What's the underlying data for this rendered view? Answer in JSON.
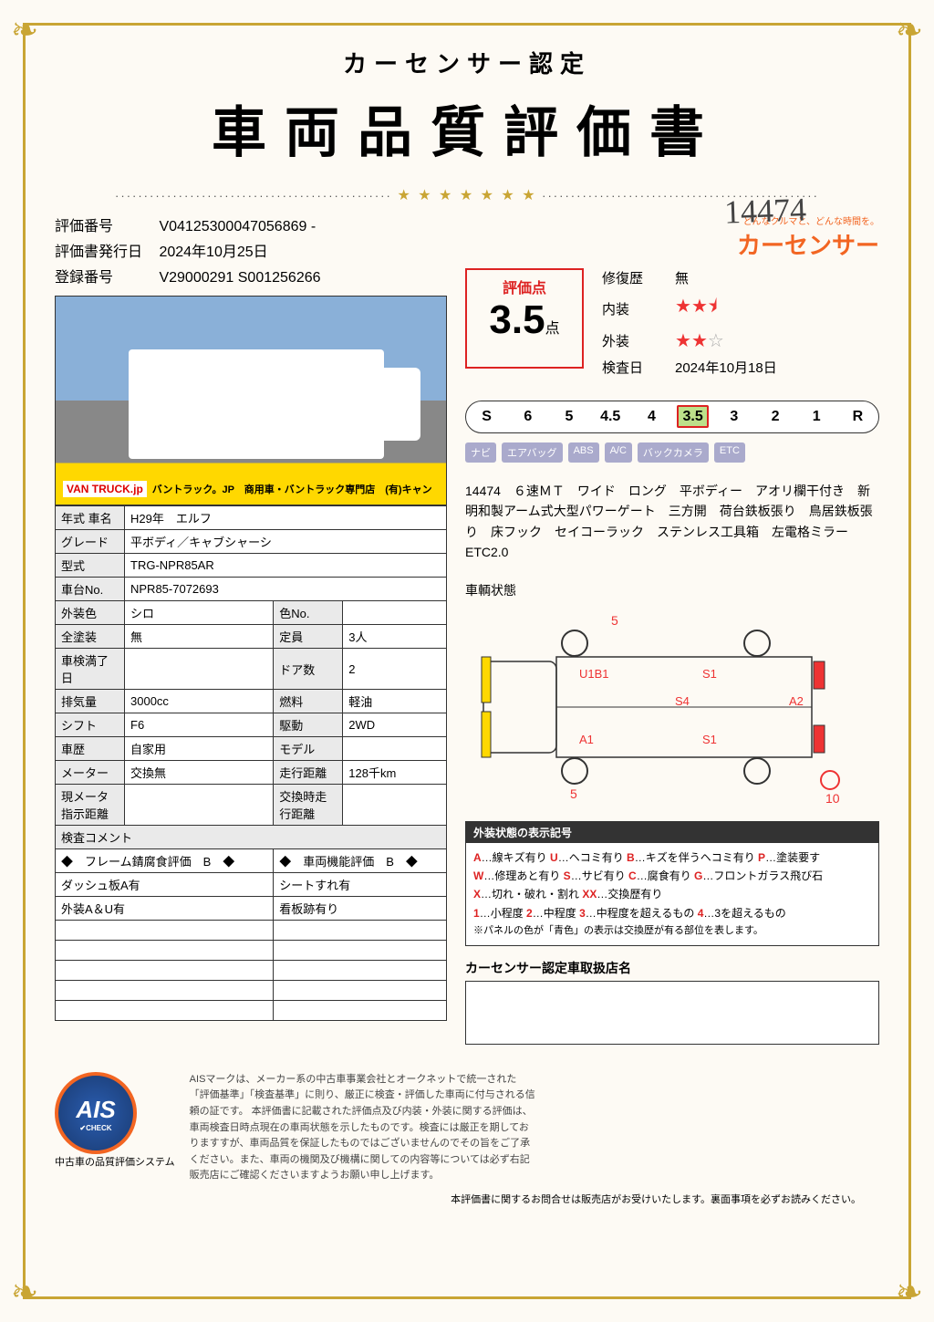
{
  "header": {
    "subtitle": "カーセンサー認定",
    "title": "車両品質評価書",
    "handwritten": "14474"
  },
  "meta": {
    "eval_no_label": "評価番号",
    "eval_no": "V04125300047056869  -",
    "issue_label": "評価書発行日",
    "issue_date": "2024年10月25日",
    "reg_label": "登録番号",
    "reg_no": "V29000291 S001256266"
  },
  "photo_banner": {
    "logo": "VAN TRUCK.jp",
    "text": "バントラック。JP　商用車・バントラック専門店　(有)キャン"
  },
  "spec": {
    "rows": [
      {
        "l1": "年式 車名",
        "v1": "H29年　エルフ",
        "l2": "",
        "v2": ""
      },
      {
        "l1": "グレード",
        "v1": "平ボディ／キャブシャーシ",
        "l2": "",
        "v2": ""
      },
      {
        "l1": "型式",
        "v1": "TRG-NPR85AR",
        "l2": "",
        "v2": ""
      },
      {
        "l1": "車台No.",
        "v1": "NPR85-7072693",
        "l2": "",
        "v2": ""
      },
      {
        "l1": "外装色",
        "v1": "シロ",
        "l2": "色No.",
        "v2": ""
      },
      {
        "l1": "全塗装",
        "v1": "無",
        "l2": "定員",
        "v2": "3人"
      },
      {
        "l1": "車検満了日",
        "v1": "",
        "l2": "ドア数",
        "v2": "2"
      },
      {
        "l1": "排気量",
        "v1": "3000cc",
        "l2": "燃料",
        "v2": "軽油"
      },
      {
        "l1": "シフト",
        "v1": "F6",
        "l2": "駆動",
        "v2": "2WD"
      },
      {
        "l1": "車歴",
        "v1": "自家用",
        "l2": "モデル",
        "v2": ""
      },
      {
        "l1": "メーター",
        "v1": "交換無",
        "l2": "走行距離",
        "v2": "128千km"
      },
      {
        "l1": "現メータ指示距離",
        "v1": "",
        "l2": "交換時走行距離",
        "v2": ""
      }
    ],
    "comment_label": "検査コメント",
    "comment_rows": [
      {
        "c1": "◆　フレーム錆腐食評価　B　◆",
        "c2": "◆　車両機能評価　B　◆"
      },
      {
        "c1": "ダッシュ板A有",
        "c2": "シートすれ有"
      },
      {
        "c1": "外装A＆U有",
        "c2": "看板跡有り"
      }
    ]
  },
  "brand": {
    "tagline": "どんなクルマと、どんな時間を。",
    "name": "カーセンサー"
  },
  "score": {
    "header": "評価点",
    "value": "3.5",
    "unit": "点",
    "repair_label": "修復歴",
    "repair_val": "無",
    "interior_label": "内装",
    "interior_stars": 2.5,
    "exterior_label": "外装",
    "exterior_stars": 2,
    "inspect_label": "検査日",
    "inspect_date": "2024年10月18日"
  },
  "scale": {
    "items": [
      "S",
      "6",
      "5",
      "4.5",
      "4",
      "3.5",
      "3",
      "2",
      "1",
      "R"
    ],
    "selected_index": 5
  },
  "badges": [
    "ナビ",
    "エアバッグ",
    "ABS",
    "A/C",
    "バックカメラ",
    "ETC"
  ],
  "description": "14474　６速ＭＴ　ワイド　ロング　平ボディー　アオリ欄干付き　新明和製アーム式大型パワーゲート　三方開　荷台鉄板張り　鳥居鉄板張り　床フック　セイコーラック　ステンレス工具箱　左電格ミラー　ETC2.0",
  "diagram": {
    "title": "車輌状態",
    "labels": {
      "top1": "5",
      "top2": "5",
      "u1b1": "U1B1",
      "s1a": "S1",
      "s4": "S4",
      "a2": "A2",
      "a1": "A1",
      "s1b": "S1",
      "bot1": "5",
      "bot2": "10"
    }
  },
  "legend": {
    "header": "外装状態の表示記号",
    "lines": [
      [
        {
          "k": "A",
          "c": "kA"
        },
        "…線キズ有り ",
        {
          "k": "U",
          "c": "kU"
        },
        "…ヘコミ有り ",
        {
          "k": "B",
          "c": "kB"
        },
        "…キズを伴うヘコミ有り ",
        {
          "k": "P",
          "c": "kP"
        },
        "…塗装要す"
      ],
      [
        {
          "k": "W",
          "c": "kW"
        },
        "…修理あと有り ",
        {
          "k": "S",
          "c": "kS"
        },
        "…サビ有り ",
        {
          "k": "C",
          "c": "kC"
        },
        "…腐食有り ",
        {
          "k": "G",
          "c": "kG"
        },
        "…フロントガラス飛び石"
      ],
      [
        {
          "k": "X",
          "c": "kX"
        },
        "…切れ・破れ・割れ ",
        {
          "k": "XX",
          "c": "kXX"
        },
        "…交換歴有り"
      ],
      [
        {
          "k": "1",
          "c": "kN"
        },
        "…小程度 ",
        {
          "k": "2",
          "c": "kN"
        },
        "…中程度 ",
        {
          "k": "3",
          "c": "kN"
        },
        "…中程度を超えるもの ",
        {
          "k": "4",
          "c": "kN"
        },
        "…3を超えるもの"
      ]
    ],
    "note": "※パネルの色が「青色」の表示は交換歴が有る部位を表します。"
  },
  "dealer": {
    "title": "カーセンサー認定車取扱店名"
  },
  "footer": {
    "ais_big": "AIS",
    "ais_check": "✔CHECK",
    "ais_label": "中古車の品質評価システム",
    "text": "AISマークは、メーカー系の中古車事業会社とオークネットで統一された「評価基準」「検査基準」に則り、厳正に検査・評価した車両に付与される信頼の証です。\n本評価書に記載された評価点及び内装・外装に関する評価は、車両検査日時点現在の車両状態を示したものです。検査には厳正を期しておりますすが、車両品質を保証したものではございませんのでその旨をご了承ください。また、車両の機関及び機構に関しての内容等については必ず右記販売店にご確認くださいますようお願い申し上げます。",
    "note": "本評価書に関するお問合せは販売店がお受けいたします。裏面事項を必ずお読みください。"
  },
  "colors": {
    "gold": "#c9a534",
    "orange": "#f26522",
    "red": "#d22",
    "green": "#bde08a"
  }
}
